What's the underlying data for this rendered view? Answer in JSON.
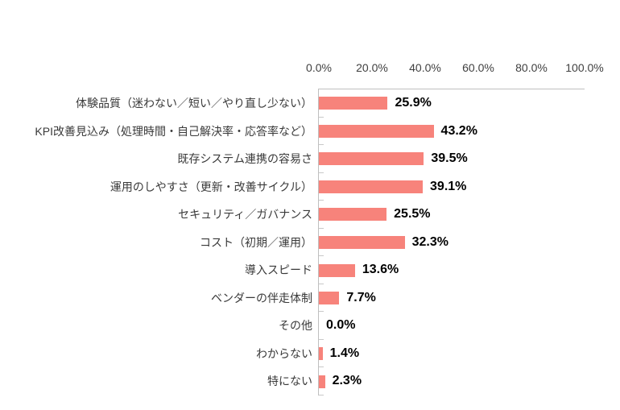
{
  "chart_data": {
    "type": "bar",
    "orientation": "horizontal",
    "title": "",
    "legend": "none",
    "grid": "off",
    "categories": [
      "体験品質（迷わない／短い／やり直し少ない）",
      "KPI改善見込み（処理時間・自己解決率・応答率など）",
      "既存システム連携の容易さ",
      "運用のしやすさ（更新・改善サイクル）",
      "セキュリティ／ガバナンス",
      "コスト（初期／運用）",
      "導入スピード",
      "ベンダーの伴走体制",
      "その他",
      "わからない",
      "特にない"
    ],
    "values": [
      25.9,
      43.2,
      39.5,
      39.1,
      25.5,
      32.3,
      13.6,
      7.7,
      0.0,
      1.4,
      2.3
    ],
    "value_labels": [
      "25.9%",
      "43.2%",
      "39.5%",
      "39.1%",
      "25.5%",
      "32.3%",
      "13.6%",
      "7.7%",
      "0.0%",
      "1.4%",
      "2.3%"
    ],
    "x_axis": {
      "position": "top",
      "min": 0,
      "max": 100,
      "ticks": [
        "0.0%",
        "20.0%",
        "40.0%",
        "60.0%",
        "80.0%",
        "100.0%"
      ]
    },
    "colors": {
      "bar": "#f7837b",
      "axis": "#bfbfbf",
      "tick": "#c9c9c9",
      "value_label": "#000000",
      "category_label": "#3a3a3a",
      "background": "#ffffff"
    }
  }
}
